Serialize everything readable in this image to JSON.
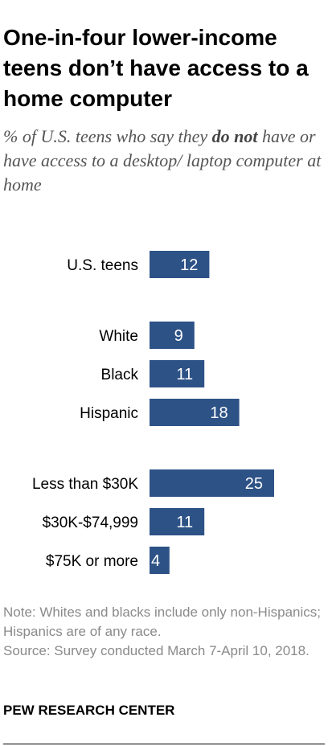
{
  "title": "One-in-four lower-income teens don’t have access to a home computer",
  "subtitle": {
    "before": "% of U.S. teens who say they ",
    "emphasis": "do not",
    "after": " have or have access to a desktop/ laptop computer at home"
  },
  "chart_data": {
    "type": "bar",
    "orientation": "horizontal",
    "categories": [
      "U.S. teens",
      "White",
      "Black",
      "Hispanic",
      "Less than $30K",
      "$30K-$74,999",
      "$75K or more"
    ],
    "groups": [
      [
        0
      ],
      [
        1,
        2,
        3
      ],
      [
        4,
        5,
        6
      ]
    ],
    "values": [
      12,
      9,
      11,
      18,
      25,
      11,
      4
    ],
    "bar_color": "#2d5286",
    "xlim": [
      0,
      25
    ],
    "grid": false,
    "legend": "none"
  },
  "note": {
    "note": "Note: Whites and blacks include only non-Hispanics; Hispanics are of any race.",
    "source": "Source: Survey conducted March 7-April 10, 2018."
  },
  "brand": "PEW RESEARCH CENTER"
}
